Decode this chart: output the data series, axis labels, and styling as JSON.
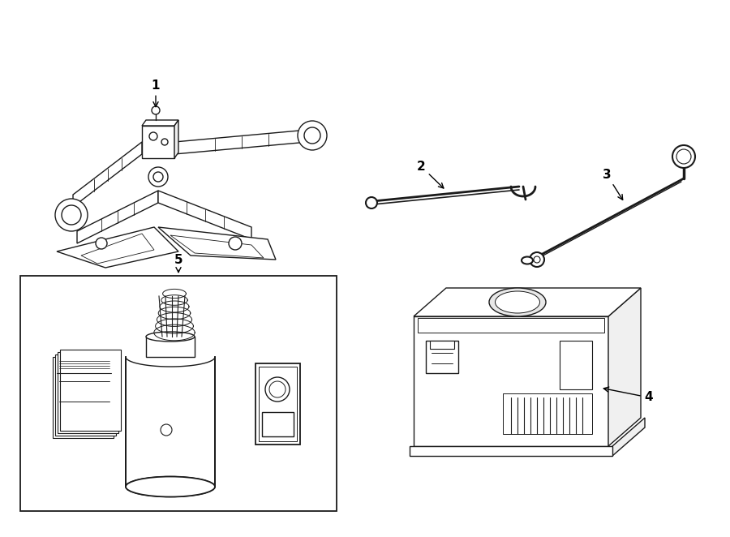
{
  "bg_color": "#ffffff",
  "line_color": "#1a1a1a",
  "lw": 1.0,
  "figsize": [
    9.0,
    6.62
  ],
  "dpi": 100
}
